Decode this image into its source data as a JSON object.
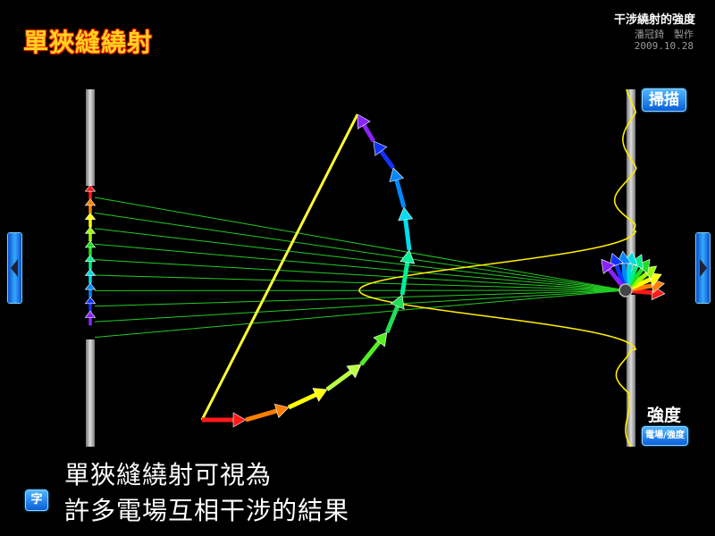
{
  "header": {
    "title": "單狹縫繞射",
    "subtitle": "干涉繞射的強度",
    "author": "潘冠錡　製作",
    "date": "2009.10.28"
  },
  "controls": {
    "scan_label": "掃描",
    "intensity_label": "強度",
    "field_intensity_label": "電場/強度",
    "char_label": "字"
  },
  "caption": {
    "line1": "單狹縫繞射可視為",
    "line2": "許多電場互相干涉的結果"
  },
  "colors": {
    "rays": "#22cc22",
    "phasor_chord": "#ffff33",
    "intensity_curve": "#ffee00",
    "arrow_sequence": [
      "#ff1a1a",
      "#ff8000",
      "#ffff00",
      "#99ff00",
      "#22dd22",
      "#00ee88",
      "#00dddd",
      "#0088ff",
      "#1133ff",
      "#8822ff"
    ]
  },
  "icons": {
    "prev": "chevron-left-icon",
    "next": "chevron-right-icon"
  }
}
